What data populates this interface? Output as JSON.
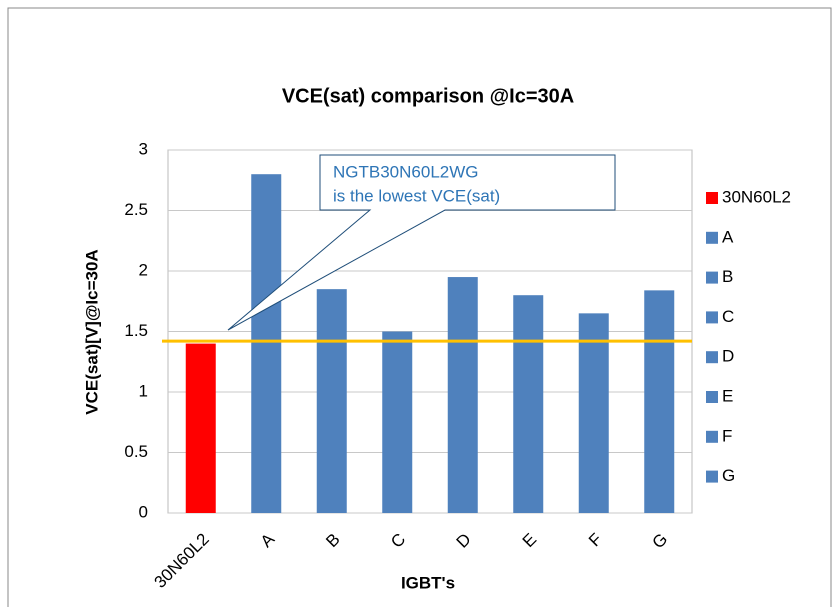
{
  "chart_data": {
    "type": "bar",
    "title": "VCE(sat) comparison @Ic=30A",
    "x_label": "IGBT's",
    "y_label": "VCE(sat)[V]@Ic=30A",
    "categories": [
      "30N60L2",
      "A",
      "B",
      "C",
      "D",
      "E",
      "F",
      "G"
    ],
    "values": [
      1.4,
      2.8,
      1.85,
      1.5,
      1.95,
      1.8,
      1.65,
      1.84
    ],
    "colors": [
      "#ff0000",
      "#4f81bd",
      "#4f81bd",
      "#4f81bd",
      "#4f81bd",
      "#4f81bd",
      "#4f81bd",
      "#4f81bd"
    ],
    "ylim": [
      0,
      3
    ],
    "yticks": [
      0,
      0.5,
      1,
      1.5,
      2,
      2.5,
      3
    ],
    "grid": true,
    "legend": "right",
    "reference_line": {
      "value": 1.42,
      "color": "#ffc000"
    },
    "annotation": [
      "NGTB30N60L2WG",
      "is the lowest  VCE(sat)"
    ]
  }
}
